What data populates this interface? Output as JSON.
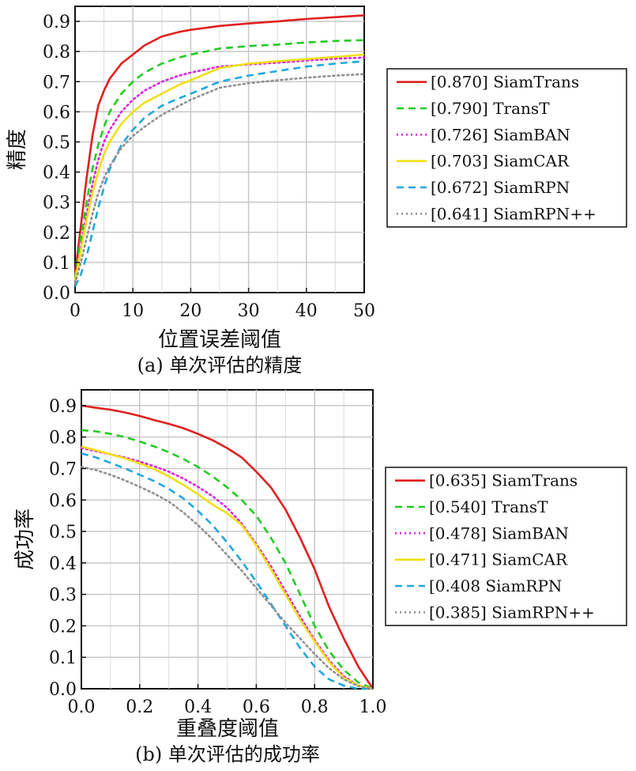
{
  "chart_data": [
    {
      "type": "line",
      "caption": "(a) 单次评估的精度",
      "xlabel": "位置误差阈值",
      "ylabel": "精度",
      "xlim": [
        0,
        50
      ],
      "ylim": [
        0,
        0.95
      ],
      "xticks": [
        "0",
        "10",
        "20",
        "30",
        "40",
        "50"
      ],
      "yticks": [
        "0.0",
        "0.1",
        "0.2",
        "0.3",
        "0.4",
        "0.5",
        "0.6",
        "0.7",
        "0.8",
        "0.9"
      ],
      "grid": true,
      "legend_position": "outside-right",
      "series": [
        {
          "name": "[0.870] SiamTrans",
          "color": "#e02020",
          "dash": "solid",
          "x": [
            0,
            1,
            2,
            3,
            4,
            5,
            6,
            8,
            10,
            12,
            15,
            18,
            20,
            25,
            30,
            35,
            40,
            45,
            50
          ],
          "y": [
            0.06,
            0.22,
            0.38,
            0.52,
            0.62,
            0.67,
            0.71,
            0.76,
            0.79,
            0.82,
            0.85,
            0.865,
            0.872,
            0.885,
            0.893,
            0.9,
            0.908,
            0.914,
            0.92
          ]
        },
        {
          "name": "[0.790] TransT",
          "color": "#22cc22",
          "dash": "dashed",
          "x": [
            0,
            1,
            2,
            3,
            4,
            5,
            6,
            8,
            10,
            12,
            15,
            18,
            20,
            25,
            30,
            35,
            40,
            45,
            50
          ],
          "y": [
            0.05,
            0.18,
            0.3,
            0.41,
            0.49,
            0.55,
            0.6,
            0.66,
            0.7,
            0.73,
            0.76,
            0.78,
            0.79,
            0.81,
            0.818,
            0.823,
            0.83,
            0.835,
            0.838
          ]
        },
        {
          "name": "[0.726] SiamBAN",
          "color": "#dd22dd",
          "dash": "dotted",
          "x": [
            0,
            1,
            2,
            3,
            4,
            5,
            6,
            8,
            10,
            12,
            15,
            18,
            20,
            25,
            30,
            35,
            40,
            45,
            50
          ],
          "y": [
            0.04,
            0.15,
            0.26,
            0.36,
            0.44,
            0.5,
            0.54,
            0.6,
            0.64,
            0.67,
            0.7,
            0.72,
            0.73,
            0.75,
            0.757,
            0.763,
            0.77,
            0.776,
            0.78
          ]
        },
        {
          "name": "[0.703] SiamCAR",
          "color": "#f0e010",
          "dash": "solid",
          "x": [
            0,
            1,
            2,
            3,
            4,
            5,
            6,
            8,
            10,
            12,
            15,
            18,
            20,
            25,
            30,
            35,
            40,
            45,
            50
          ],
          "y": [
            0.04,
            0.14,
            0.24,
            0.33,
            0.4,
            0.46,
            0.5,
            0.56,
            0.6,
            0.63,
            0.66,
            0.69,
            0.705,
            0.745,
            0.76,
            0.768,
            0.775,
            0.782,
            0.79
          ]
        },
        {
          "name": "[0.672] SiamRPN",
          "color": "#20a8e0",
          "dash": "dashed",
          "x": [
            0,
            1,
            2,
            3,
            4,
            5,
            6,
            8,
            10,
            12,
            15,
            18,
            20,
            25,
            30,
            35,
            40,
            45,
            50
          ],
          "y": [
            0.02,
            0.06,
            0.12,
            0.2,
            0.28,
            0.35,
            0.41,
            0.49,
            0.54,
            0.58,
            0.62,
            0.645,
            0.66,
            0.7,
            0.72,
            0.735,
            0.75,
            0.76,
            0.768
          ]
        },
        {
          "name": "[0.641] SiamRPN++",
          "color": "#909090",
          "dash": "dotted",
          "x": [
            0,
            1,
            2,
            3,
            4,
            5,
            6,
            8,
            10,
            12,
            15,
            18,
            20,
            25,
            30,
            35,
            40,
            45,
            50
          ],
          "y": [
            0.03,
            0.1,
            0.18,
            0.26,
            0.33,
            0.38,
            0.42,
            0.48,
            0.52,
            0.55,
            0.59,
            0.62,
            0.64,
            0.68,
            0.695,
            0.705,
            0.713,
            0.72,
            0.725
          ]
        }
      ]
    },
    {
      "type": "line",
      "caption": "(b) 单次评估的成功率",
      "xlabel": "重叠度阈值",
      "ylabel": "成功率",
      "xlim": [
        0,
        1
      ],
      "ylim": [
        0,
        0.95
      ],
      "xticks": [
        "0.0",
        "0.2",
        "0.4",
        "0.6",
        "0.8",
        "1.0"
      ],
      "yticks": [
        "0.0",
        "0.1",
        "0.2",
        "0.3",
        "0.4",
        "0.5",
        "0.6",
        "0.7",
        "0.8",
        "0.9"
      ],
      "grid": true,
      "legend_position": "outside-right",
      "series": [
        {
          "name": "[0.635] SiamTrans",
          "color": "#e02020",
          "dash": "solid",
          "x": [
            0,
            0.05,
            0.1,
            0.15,
            0.2,
            0.25,
            0.3,
            0.35,
            0.4,
            0.45,
            0.5,
            0.55,
            0.6,
            0.65,
            0.7,
            0.75,
            0.8,
            0.85,
            0.9,
            0.95,
            1.0
          ],
          "y": [
            0.9,
            0.893,
            0.887,
            0.878,
            0.867,
            0.854,
            0.842,
            0.828,
            0.81,
            0.79,
            0.765,
            0.735,
            0.69,
            0.64,
            0.57,
            0.48,
            0.38,
            0.26,
            0.16,
            0.07,
            0.0
          ]
        },
        {
          "name": "[0.540] TransT",
          "color": "#22cc22",
          "dash": "dashed",
          "x": [
            0,
            0.05,
            0.1,
            0.15,
            0.2,
            0.25,
            0.3,
            0.35,
            0.4,
            0.45,
            0.5,
            0.55,
            0.6,
            0.65,
            0.7,
            0.75,
            0.8,
            0.85,
            0.9,
            0.95,
            1.0
          ],
          "y": [
            0.822,
            0.818,
            0.81,
            0.8,
            0.786,
            0.77,
            0.752,
            0.73,
            0.705,
            0.675,
            0.64,
            0.6,
            0.55,
            0.48,
            0.4,
            0.3,
            0.2,
            0.12,
            0.06,
            0.02,
            0.0
          ]
        },
        {
          "name": "[0.478] SiamBAN",
          "color": "#dd22dd",
          "dash": "dotted",
          "x": [
            0,
            0.05,
            0.1,
            0.15,
            0.2,
            0.25,
            0.3,
            0.35,
            0.4,
            0.45,
            0.5,
            0.55,
            0.6,
            0.65,
            0.7,
            0.75,
            0.8,
            0.85,
            0.9,
            0.95,
            1.0
          ],
          "y": [
            0.765,
            0.755,
            0.745,
            0.735,
            0.722,
            0.707,
            0.69,
            0.668,
            0.642,
            0.612,
            0.575,
            0.525,
            0.46,
            0.39,
            0.31,
            0.23,
            0.155,
            0.09,
            0.04,
            0.01,
            0.0
          ]
        },
        {
          "name": "[0.471] SiamCAR",
          "color": "#f0e010",
          "dash": "solid",
          "x": [
            0,
            0.05,
            0.1,
            0.15,
            0.2,
            0.25,
            0.3,
            0.35,
            0.4,
            0.45,
            0.5,
            0.55,
            0.6,
            0.65,
            0.7,
            0.75,
            0.8,
            0.85,
            0.9,
            0.95,
            1.0
          ],
          "y": [
            0.77,
            0.758,
            0.745,
            0.732,
            0.716,
            0.698,
            0.675,
            0.648,
            0.618,
            0.585,
            0.558,
            0.52,
            0.455,
            0.38,
            0.3,
            0.22,
            0.15,
            0.085,
            0.035,
            0.01,
            0.0
          ]
        },
        {
          "name": "[0.408 SiamRPN",
          "color": "#20a8e0",
          "dash": "dashed",
          "x": [
            0,
            0.05,
            0.1,
            0.15,
            0.2,
            0.25,
            0.3,
            0.35,
            0.4,
            0.45,
            0.5,
            0.55,
            0.6,
            0.65,
            0.7,
            0.75,
            0.8,
            0.85,
            0.9,
            0.95,
            1.0
          ],
          "y": [
            0.748,
            0.735,
            0.718,
            0.7,
            0.68,
            0.66,
            0.635,
            0.605,
            0.565,
            0.52,
            0.465,
            0.405,
            0.34,
            0.27,
            0.2,
            0.13,
            0.07,
            0.03,
            0.01,
            0.0,
            0.0
          ]
        },
        {
          "name": "[0.385] SiamRPN++",
          "color": "#909090",
          "dash": "dotted",
          "x": [
            0,
            0.05,
            0.1,
            0.15,
            0.2,
            0.25,
            0.3,
            0.35,
            0.4,
            0.45,
            0.5,
            0.55,
            0.6,
            0.65,
            0.7,
            0.75,
            0.8,
            0.85,
            0.9,
            0.95,
            1.0
          ],
          "y": [
            0.705,
            0.695,
            0.68,
            0.662,
            0.642,
            0.62,
            0.595,
            0.56,
            0.52,
            0.475,
            0.425,
            0.375,
            0.32,
            0.265,
            0.21,
            0.16,
            0.11,
            0.065,
            0.03,
            0.008,
            0.0
          ]
        }
      ]
    }
  ]
}
